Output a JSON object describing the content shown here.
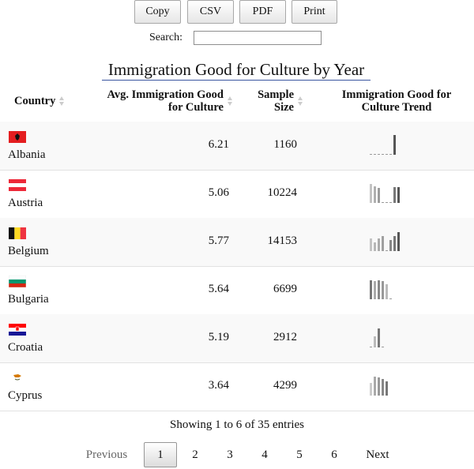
{
  "toolbar": {
    "buttons": [
      {
        "label": "Copy"
      },
      {
        "label": "CSV"
      },
      {
        "label": "PDF"
      },
      {
        "label": "Print"
      }
    ]
  },
  "search": {
    "label": "Search:",
    "value": ""
  },
  "table": {
    "caption": "Immigration Good for Culture by Year",
    "headers": {
      "country": "Country",
      "avg": "Avg. Immigration Good for Culture",
      "avg_line1": "Avg. Immigration Good",
      "avg_line2": "for Culture",
      "size": "Sample Size",
      "size_line1": "Sample",
      "size_line2": "Size",
      "trend": "Immigration Good for Culture Trend",
      "trend_line1": "Immigration Good for",
      "trend_line2": "Culture Trend"
    },
    "rows": [
      {
        "country": "Albania",
        "avg": "6.21",
        "size": "1160",
        "flag": "albania-flag",
        "trend": [
          0,
          0,
          0,
          0,
          0,
          0,
          1
        ],
        "trend_shades": [
          "#bbb",
          "#bbb",
          "#bbb",
          "#bbb",
          "#bbb",
          "#bbb",
          "#555"
        ]
      },
      {
        "country": "Austria",
        "avg": "5.06",
        "size": "10224",
        "flag": "austria-flag",
        "trend": [
          0.95,
          0.85,
          0.75,
          0,
          0,
          0,
          0.8,
          0.8
        ],
        "trend_shades": [
          "#c4c4c4",
          "#b0b0b0",
          "#9c9c9c",
          "#999",
          "#999",
          "#999",
          "#777",
          "#555"
        ]
      },
      {
        "country": "Belgium",
        "avg": "5.77",
        "size": "14153",
        "flag": "belgium-flag",
        "trend": [
          0.65,
          0.45,
          0.65,
          0.75,
          0,
          0.55,
          0.75,
          0.95
        ],
        "trend_shades": [
          "#c4c4c4",
          "#b8b8b8",
          "#acacac",
          "#a0a0a0",
          "#999",
          "#888",
          "#777",
          "#555"
        ]
      },
      {
        "country": "Bulgaria",
        "avg": "5.64",
        "size": "6699",
        "flag": "bulgaria-flag",
        "trend": [
          0.95,
          0.9,
          0.95,
          0.9,
          0.75,
          0
        ],
        "trend_shades": [
          "#777",
          "#aaa",
          "#888",
          "#999",
          "#bbb",
          "#999"
        ]
      },
      {
        "country": "Croatia",
        "avg": "5.19",
        "size": "2912",
        "flag": "croatia-flag",
        "trend": [
          0,
          0.55,
          0.95,
          0
        ],
        "trend_shades": [
          "#999",
          "#bbb",
          "#777",
          "#999"
        ]
      },
      {
        "country": "Cyprus",
        "avg": "3.64",
        "size": "4299",
        "flag": "cyprus-flag",
        "trend": [
          0.65,
          0.95,
          0.9,
          0.85,
          0.7
        ],
        "trend_shades": [
          "#ccc",
          "#aaa",
          "#999",
          "#888",
          "#777"
        ]
      }
    ]
  },
  "info": "Showing 1 to 6 of 35 entries",
  "pagination": {
    "previous": "Previous",
    "next": "Next",
    "pages": [
      "1",
      "2",
      "3",
      "4",
      "5",
      "6"
    ],
    "current": "1"
  }
}
